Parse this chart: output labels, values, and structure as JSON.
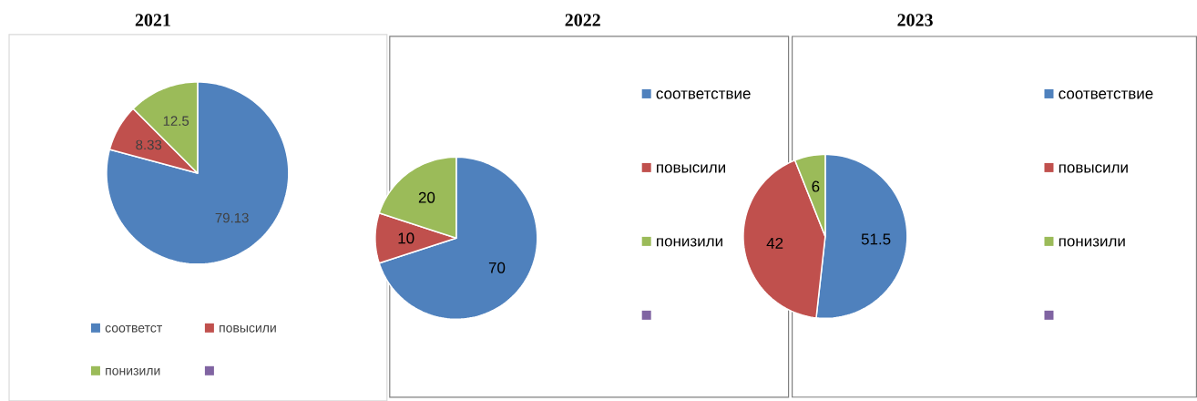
{
  "chart_data": [
    {
      "type": "pie",
      "title": "2021",
      "categories": [
        "соответст",
        "повысили",
        "понизили",
        null
      ],
      "values": [
        79.13,
        8.33,
        12.5,
        null
      ],
      "colors": [
        "#4f81bd",
        "#c0504d",
        "#9bbb59",
        "#8064a2"
      ],
      "data_labels": true,
      "legend": "bottom"
    },
    {
      "type": "pie",
      "title": "2022",
      "categories": [
        "соответствие",
        "повысили",
        "понизили",
        null
      ],
      "values": [
        70,
        10,
        20,
        null
      ],
      "colors": [
        "#4f81bd",
        "#c0504d",
        "#9bbb59",
        "#8064a2"
      ],
      "data_labels": true,
      "legend": "right"
    },
    {
      "type": "pie",
      "title": "2023",
      "categories": [
        "соответствие",
        "повысили",
        "понизили",
        null
      ],
      "values": [
        51.5,
        42,
        6,
        null
      ],
      "colors": [
        "#4f81bd",
        "#c0504d",
        "#9bbb59",
        "#8064a2"
      ],
      "data_labels": true,
      "legend": "right"
    }
  ]
}
